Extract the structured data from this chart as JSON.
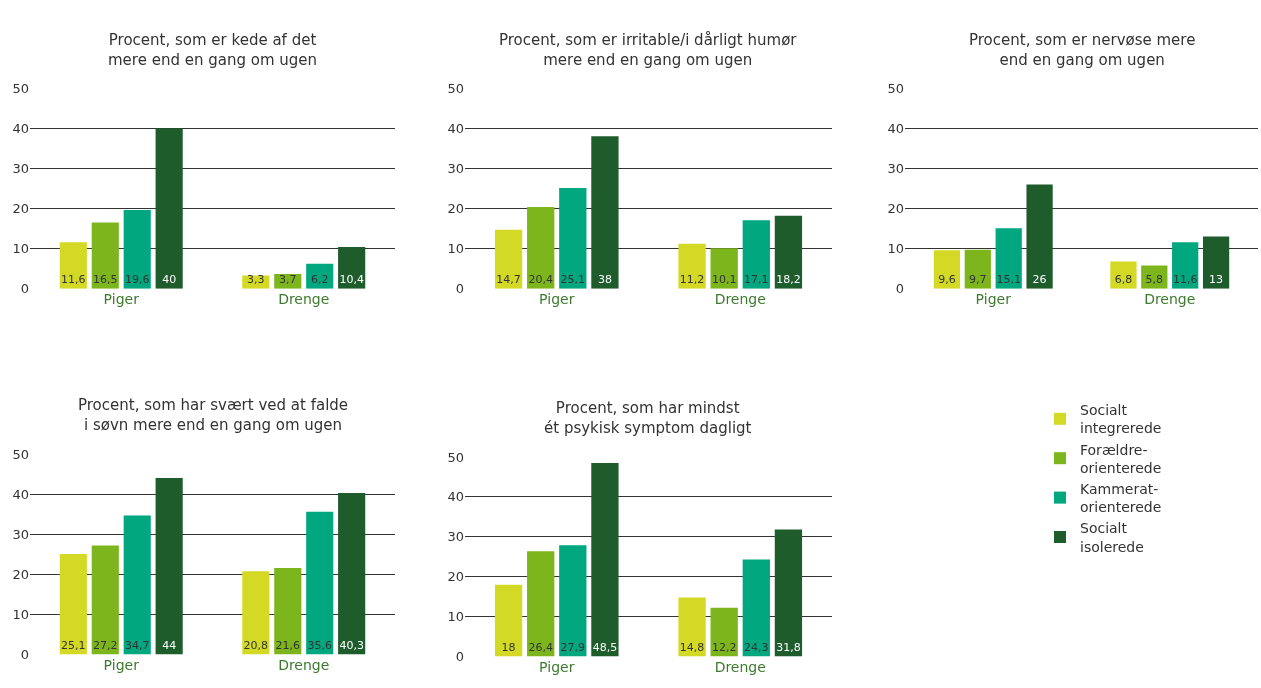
{
  "chart_data": [
    {
      "type": "bar",
      "title": "Procent, som er kede af det\nmere end en gang om ugen",
      "categories": [
        "Piger",
        "Drenge"
      ],
      "ylim": [
        0,
        50
      ],
      "yticks": [
        0,
        10,
        20,
        30,
        40,
        50
      ],
      "grid": "y",
      "series": [
        {
          "color": "#d4d925",
          "values": [
            11.6,
            3.3
          ],
          "value_labels": [
            "11,6",
            "3,3"
          ]
        },
        {
          "color": "#7db61c",
          "values": [
            16.5,
            3.7
          ],
          "value_labels": [
            "16,5",
            "3,7"
          ]
        },
        {
          "color": "#00a77f",
          "values": [
            19.6,
            6.2
          ],
          "value_labels": [
            "19,6",
            "6,2"
          ]
        },
        {
          "color": "#1e5c2c",
          "values": [
            40,
            10.4
          ],
          "value_labels": [
            "40",
            "10,4"
          ]
        }
      ]
    },
    {
      "type": "bar",
      "title": "Procent, som er irritable/i dårligt humør\nmere end en gang om ugen",
      "categories": [
        "Piger",
        "Drenge"
      ],
      "ylim": [
        0,
        50
      ],
      "yticks": [
        0,
        10,
        20,
        30,
        40,
        50
      ],
      "grid": "y",
      "series": [
        {
          "color": "#d4d925",
          "values": [
            14.7,
            11.2
          ],
          "value_labels": [
            "14,7",
            "11,2"
          ]
        },
        {
          "color": "#7db61c",
          "values": [
            20.4,
            10.1
          ],
          "value_labels": [
            "20,4",
            "10,1"
          ]
        },
        {
          "color": "#00a77f",
          "values": [
            25.1,
            17.1
          ],
          "value_labels": [
            "25,1",
            "17,1"
          ]
        },
        {
          "color": "#1e5c2c",
          "values": [
            38,
            18.2
          ],
          "value_labels": [
            "38",
            "18,2"
          ]
        }
      ]
    },
    {
      "type": "bar",
      "title": "Procent, som er nervøse mere\nend en gang om ugen",
      "categories": [
        "Piger",
        "Drenge"
      ],
      "ylim": [
        0,
        50
      ],
      "yticks": [
        0,
        10,
        20,
        30,
        40,
        50
      ],
      "grid": "y",
      "series": [
        {
          "color": "#d4d925",
          "values": [
            9.6,
            6.8
          ],
          "value_labels": [
            "9,6",
            "6,8"
          ]
        },
        {
          "color": "#7db61c",
          "values": [
            9.7,
            5.8
          ],
          "value_labels": [
            "9,7",
            "5,8"
          ]
        },
        {
          "color": "#00a77f",
          "values": [
            15.1,
            11.6
          ],
          "value_labels": [
            "15,1",
            "11,6"
          ]
        },
        {
          "color": "#1e5c2c",
          "values": [
            26,
            13
          ],
          "value_labels": [
            "26",
            "13"
          ]
        }
      ]
    },
    {
      "type": "bar",
      "title": "Procent, som har svært ved at falde\ni søvn mere end en gang om ugen",
      "categories": [
        "Piger",
        "Drenge"
      ],
      "ylim": [
        0,
        50
      ],
      "yticks": [
        0,
        10,
        20,
        30,
        40,
        50
      ],
      "grid": "y",
      "series": [
        {
          "color": "#d4d925",
          "values": [
            25.1,
            20.8
          ],
          "value_labels": [
            "25,1",
            "20,8"
          ]
        },
        {
          "color": "#7db61c",
          "values": [
            27.2,
            21.6
          ],
          "value_labels": [
            "27,2",
            "21,6"
          ]
        },
        {
          "color": "#00a77f",
          "values": [
            34.7,
            35.6
          ],
          "value_labels": [
            "34,7",
            "35,6"
          ]
        },
        {
          "color": "#1e5c2c",
          "values": [
            44,
            40.3
          ],
          "value_labels": [
            "44",
            "40,3"
          ]
        }
      ]
    },
    {
      "type": "bar",
      "title": "Procent, som har mindst\nét psykisk symptom dagligt",
      "categories": [
        "Piger",
        "Drenge"
      ],
      "ylim": [
        0,
        50
      ],
      "yticks": [
        0,
        10,
        20,
        30,
        40,
        50
      ],
      "grid": "y",
      "legend": "right",
      "series": [
        {
          "name": "Socialt\nintegrerede",
          "color": "#d4d925",
          "values": [
            18,
            14.8
          ],
          "value_labels": [
            "18",
            "14,8"
          ]
        },
        {
          "name": "Forældre-\norienterede",
          "color": "#7db61c",
          "values": [
            26.4,
            12.2
          ],
          "value_labels": [
            "26,4",
            "12,2"
          ]
        },
        {
          "name": "Kammerat-\norienterede",
          "color": "#00a77f",
          "values": [
            27.9,
            24.3
          ],
          "value_labels": [
            "27,9",
            "24,3"
          ]
        },
        {
          "name": "Socialt\nisolerede",
          "color": "#1e5c2c",
          "values": [
            48.5,
            31.8
          ],
          "value_labels": [
            "48,5",
            "31,8"
          ]
        }
      ]
    }
  ]
}
